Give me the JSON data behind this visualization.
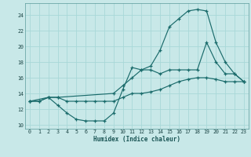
{
  "xlabel": "Humidex (Indice chaleur)",
  "bg_color": "#c8e8e8",
  "grid_color": "#b0d8d8",
  "line_color": "#1a6b6b",
  "xlim": [
    -0.5,
    23.5
  ],
  "ylim": [
    9.5,
    25.5
  ],
  "xticks": [
    0,
    1,
    2,
    3,
    4,
    5,
    6,
    7,
    8,
    9,
    10,
    11,
    12,
    13,
    14,
    15,
    16,
    17,
    18,
    19,
    20,
    21,
    22,
    23
  ],
  "yticks": [
    10,
    12,
    14,
    16,
    18,
    20,
    22,
    24
  ],
  "line1_x": [
    0,
    1,
    2,
    3,
    4,
    5,
    6,
    7,
    8,
    9,
    10,
    11,
    12,
    13,
    14,
    15,
    16,
    17,
    18,
    19,
    20,
    21,
    22,
    23
  ],
  "line1_y": [
    13,
    13,
    13.5,
    13.5,
    13,
    13,
    13,
    13,
    13,
    13,
    13.5,
    14,
    14,
    14.2,
    14.5,
    15,
    15.5,
    15.8,
    16,
    16,
    15.8,
    15.5,
    15.5,
    15.5
  ],
  "line2_x": [
    0,
    1,
    2,
    3,
    4,
    5,
    6,
    7,
    8,
    9,
    10,
    11,
    12,
    13,
    14,
    15,
    16,
    17,
    18,
    19,
    20,
    21,
    22,
    23
  ],
  "line2_y": [
    13,
    13,
    13.5,
    12.5,
    11.5,
    10.7,
    10.5,
    10.5,
    10.5,
    11.5,
    14.5,
    17.3,
    17,
    17,
    16.5,
    17,
    17,
    17,
    17,
    20.5,
    18,
    16.5,
    16.5,
    15.5
  ],
  "line3_x": [
    0,
    2,
    3,
    9,
    10,
    11,
    12,
    13,
    14,
    15,
    16,
    17,
    18,
    19,
    20,
    21,
    22,
    23
  ],
  "line3_y": [
    13,
    13.5,
    13.5,
    14,
    15,
    16,
    17,
    17.5,
    19.5,
    22.5,
    23.5,
    24.5,
    24.7,
    24.5,
    20.5,
    18,
    16.5,
    15.5
  ]
}
